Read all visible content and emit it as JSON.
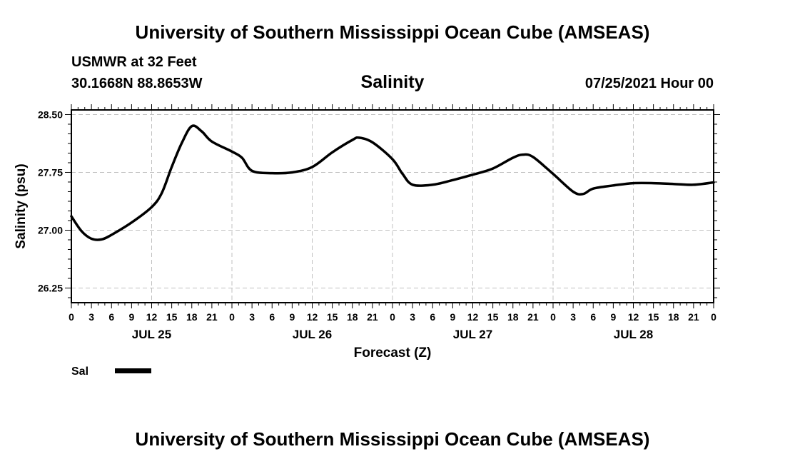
{
  "header": {
    "title": "University of Southern Mississippi Ocean Cube (AMSEAS)",
    "station": "USMWR at 32 Feet",
    "coords": "30.1668N  88.8653W",
    "date": "07/25/2021 Hour 00"
  },
  "footer": {
    "title": "University of Southern Mississippi Ocean Cube (AMSEAS)"
  },
  "legend": {
    "label": "Sal"
  },
  "colors": {
    "line": "#000000",
    "grid": "#c0c0c0"
  },
  "chart_data": {
    "type": "line",
    "title": "Salinity",
    "xlabel": "Forecast (Z)",
    "ylabel": "Salinity (psu)",
    "xlim": [
      0,
      96
    ],
    "ylim": [
      26.06,
      28.56
    ],
    "grid": true,
    "yticks": [
      "26.25",
      "27.00",
      "27.75",
      "28.50"
    ],
    "ytick_values": [
      26.25,
      27.0,
      27.75,
      28.5
    ],
    "xtick_labels": [
      "0",
      "3",
      "6",
      "9",
      "12",
      "15",
      "18",
      "21",
      "0",
      "3",
      "6",
      "9",
      "12",
      "15",
      "18",
      "21",
      "0",
      "3",
      "6",
      "9",
      "12",
      "15",
      "18",
      "21",
      "0",
      "3",
      "6",
      "9",
      "12",
      "15",
      "18",
      "21",
      "0"
    ],
    "date_labels": [
      {
        "label": "JUL 25",
        "hour": 12
      },
      {
        "label": "JUL 26",
        "hour": 36
      },
      {
        "label": "JUL 27",
        "hour": 60
      },
      {
        "label": "JUL 28",
        "hour": 84
      }
    ],
    "series": [
      {
        "name": "Sal",
        "x": [
          0,
          1.5,
          3,
          4.5,
          6,
          9,
          12,
          13.5,
          15,
          16.5,
          18,
          19.5,
          21,
          24,
          25.5,
          27,
          30,
          33,
          36,
          39,
          42,
          43,
          45,
          48,
          49.5,
          51,
          54,
          57,
          60,
          63,
          66,
          67.5,
          69,
          72,
          75,
          76.5,
          78,
          81,
          84,
          87,
          90,
          93,
          96
        ],
        "y": [
          27.18,
          26.99,
          26.89,
          26.88,
          26.94,
          27.1,
          27.3,
          27.48,
          27.82,
          28.13,
          28.35,
          28.28,
          28.15,
          28.02,
          27.94,
          27.77,
          27.74,
          27.75,
          27.82,
          28.01,
          28.17,
          28.2,
          28.14,
          27.92,
          27.73,
          27.59,
          27.59,
          27.65,
          27.72,
          27.8,
          27.94,
          27.98,
          27.95,
          27.73,
          27.5,
          27.47,
          27.54,
          27.58,
          27.61,
          27.61,
          27.6,
          27.59,
          27.62
        ]
      }
    ]
  }
}
